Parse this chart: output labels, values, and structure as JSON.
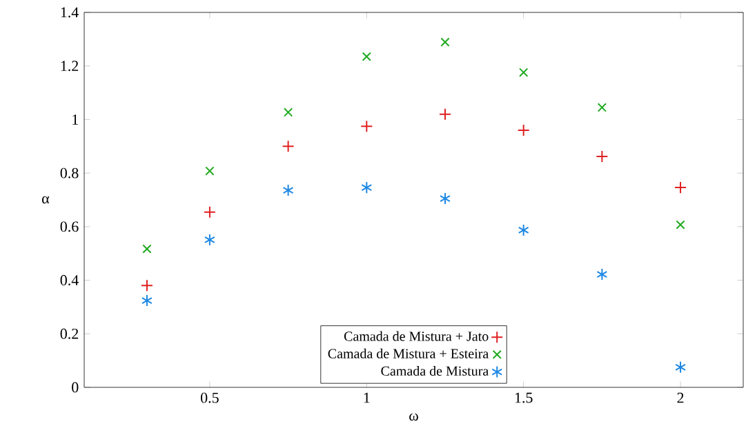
{
  "chart_data": {
    "type": "scatter",
    "xlabel": "ω",
    "ylabel": "α",
    "x": [
      0.3,
      0.5,
      0.75,
      1.0,
      1.25,
      1.5,
      1.75,
      2.0
    ],
    "series": [
      {
        "name": "Camada de Mistura + Jato",
        "color": "#e02020",
        "marker": "plus",
        "values": [
          0.38,
          0.654,
          0.9,
          0.975,
          1.02,
          0.96,
          0.862,
          0.746
        ]
      },
      {
        "name": "Camada de Mistura + Esteira",
        "color": "#20aa20",
        "marker": "cross",
        "values": [
          0.517,
          0.808,
          1.027,
          1.235,
          1.289,
          1.176,
          1.045,
          0.607
        ]
      },
      {
        "name": "Camada de Mistura",
        "color": "#1e88e5",
        "values": [
          0.324,
          0.551,
          0.736,
          0.746,
          0.705,
          0.587,
          0.422,
          0.075
        ]
      }
    ],
    "xlim": [
      0.1,
      2.2
    ],
    "ylim": [
      0,
      1.4
    ],
    "xticks": [
      0.5,
      1,
      1.5,
      2
    ],
    "yticks": [
      0,
      0.2,
      0.4,
      0.6,
      0.8,
      1,
      1.2,
      1.4
    ],
    "grid": false,
    "legend": "bottom"
  }
}
